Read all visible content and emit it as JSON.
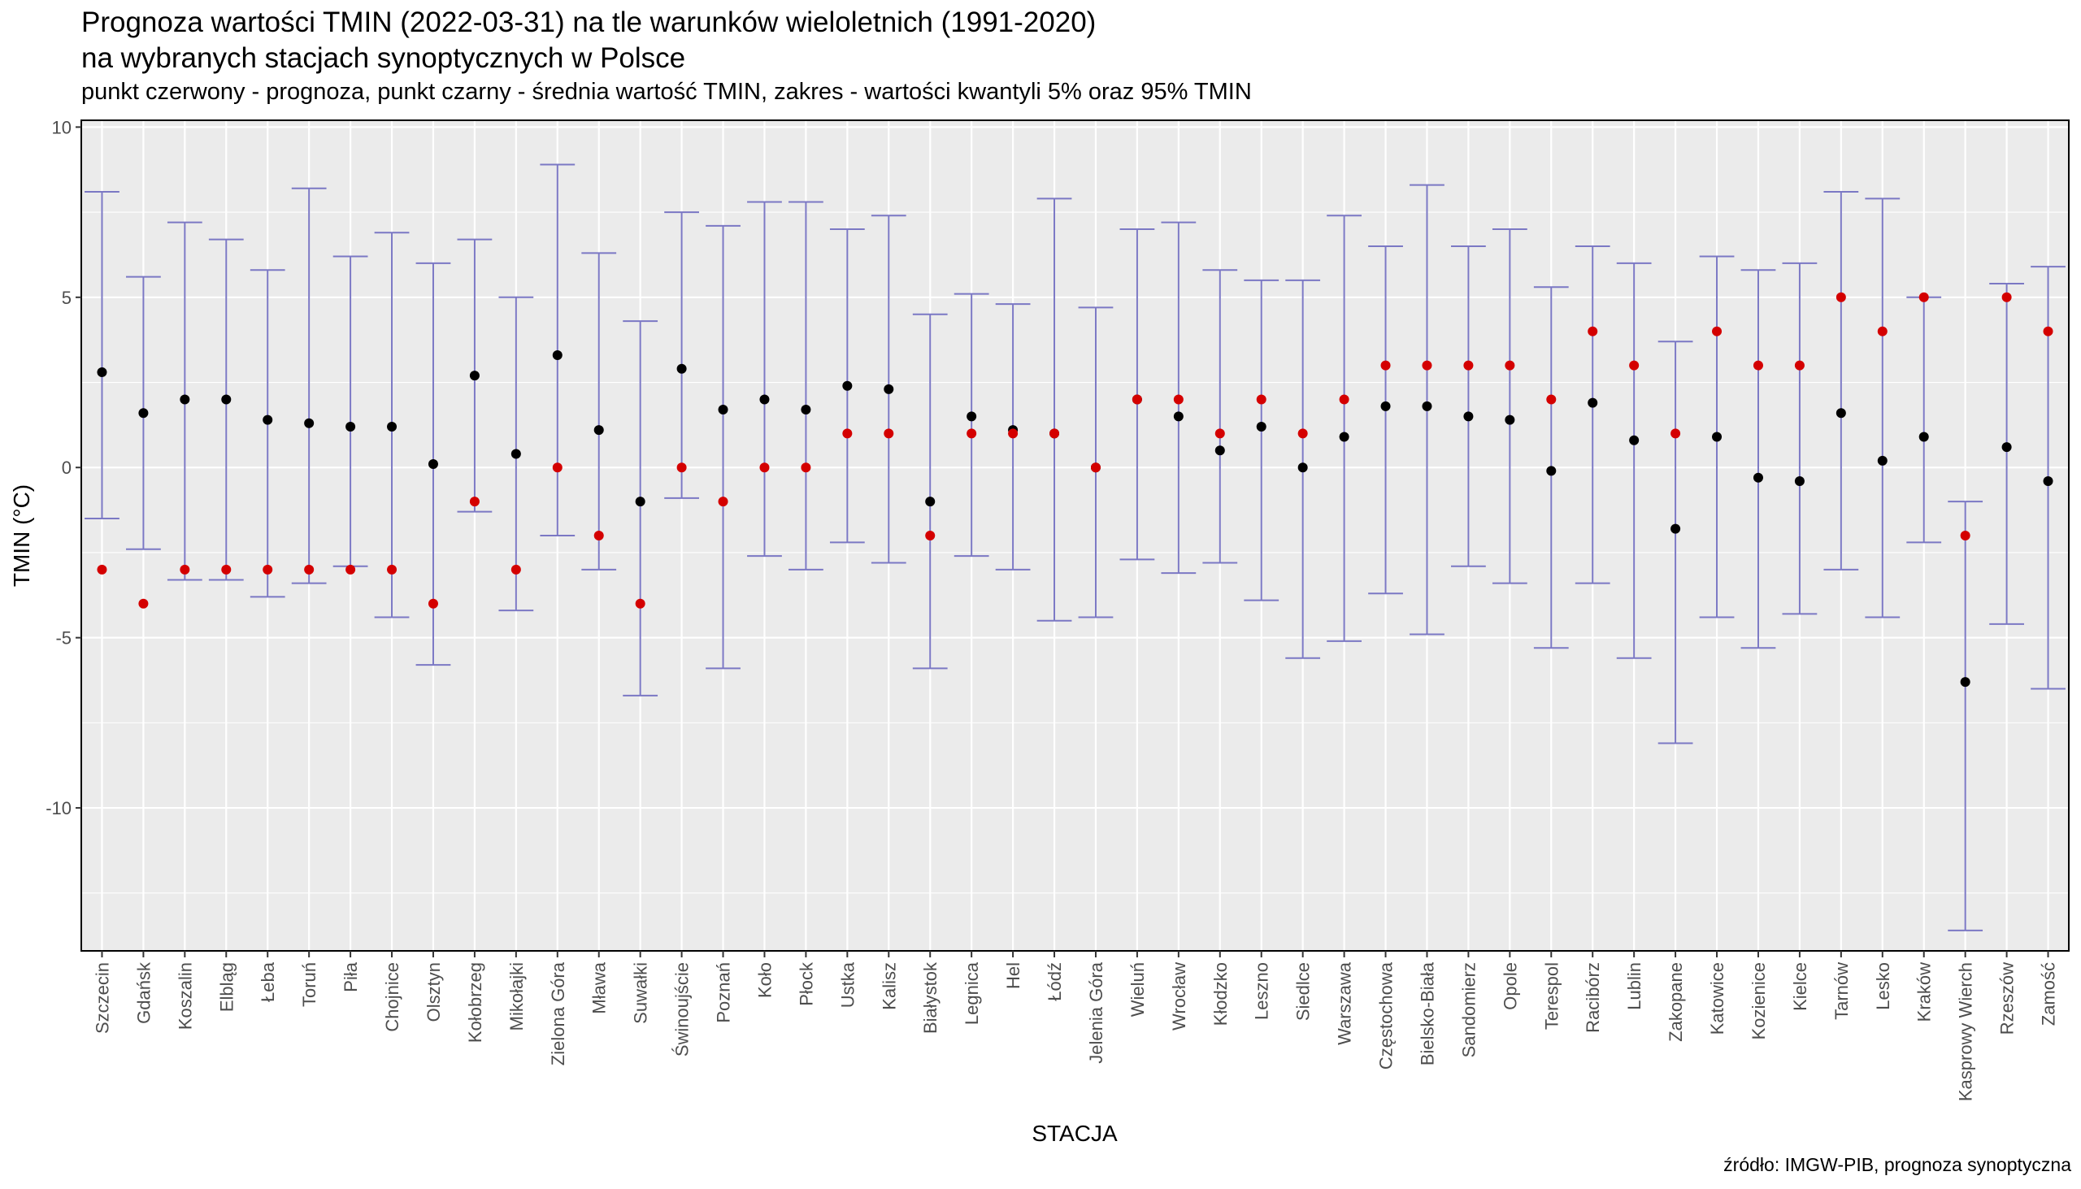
{
  "title_line1": "Prognoza wartości TMIN (2022-03-31) na tle warunków wieloletnich (1991-2020)",
  "title_line2": "na wybranych stacjach synoptycznych w Polsce",
  "subtitle": "punkt czerwony - prognoza, punkt czarny - średnia wartość TMIN, zakres - wartości kwantyli 5% oraz 95% TMIN",
  "caption": "źródło: IMGW-PIB, prognoza synoptyczna",
  "colors": {
    "panel": "#ebebeb",
    "grid": "#ffffff",
    "range": "#7b78c4",
    "forecast": "#d40000",
    "mean": "#000000"
  },
  "chart_data": {
    "type": "scatter",
    "xlabel": "STACJA",
    "ylabel": "TMIN (°C)",
    "ylim": [
      -14.2,
      10.2
    ],
    "yticks": [
      10,
      5,
      0,
      -5,
      -10
    ],
    "ytick_labels": [
      "10",
      "5",
      "0",
      "-5",
      "-10"
    ],
    "grid": true,
    "categories": [
      "Szczecin",
      "Gdańsk",
      "Koszalin",
      "Elbląg",
      "Łeba",
      "Toruń",
      "Piła",
      "Chojnice",
      "Olsztyn",
      "Kołobrzeg",
      "Mikołajki",
      "Zielona Góra",
      "Mława",
      "Suwałki",
      "Świnoujście",
      "Poznań",
      "Koło",
      "Płock",
      "Ustka",
      "Kalisz",
      "Białystok",
      "Legnica",
      "Hel",
      "Łódź",
      "Jelenia Góra",
      "Wieluń",
      "Wrocław",
      "Kłodzko",
      "Leszno",
      "Siedlce",
      "Warszawa",
      "Częstochowa",
      "Bielsko-Biała",
      "Sandomierz",
      "Opole",
      "Terespol",
      "Racibórz",
      "Lublin",
      "Zakopane",
      "Katowice",
      "Kozienice",
      "Kielce",
      "Tarnów",
      "Lesko",
      "Kraków",
      "Kasprowy Wierch",
      "Rzeszów",
      "Zamość"
    ],
    "series": [
      {
        "name": "kwantyl 5%",
        "values": [
          -1.5,
          -2.4,
          -3.3,
          -3.3,
          -3.8,
          -3.4,
          -2.9,
          -4.4,
          -5.8,
          -1.3,
          -4.2,
          -2.0,
          -3.0,
          -6.7,
          -0.9,
          -5.9,
          -2.6,
          -3.0,
          -2.2,
          -2.8,
          -5.9,
          -2.6,
          -3.0,
          -4.5,
          -4.4,
          -2.7,
          -3.1,
          -2.8,
          -3.9,
          -5.6,
          -5.1,
          -3.7,
          -4.9,
          -2.9,
          -3.4,
          -5.3,
          -3.4,
          -5.6,
          -8.1,
          -4.4,
          -5.3,
          -4.3,
          -3.0,
          -4.4,
          -2.2,
          -13.6,
          -4.6,
          -6.5
        ]
      },
      {
        "name": "kwantyl 95%",
        "values": [
          8.1,
          5.6,
          7.2,
          6.7,
          5.8,
          8.2,
          6.2,
          6.9,
          6.0,
          6.7,
          5.0,
          8.9,
          6.3,
          4.3,
          7.5,
          7.1,
          7.8,
          7.8,
          7.0,
          7.4,
          4.5,
          5.1,
          4.8,
          7.9,
          4.7,
          7.0,
          7.2,
          5.8,
          5.5,
          5.5,
          7.4,
          6.5,
          8.3,
          6.5,
          7.0,
          5.3,
          6.5,
          6.0,
          3.7,
          6.2,
          5.8,
          6.0,
          8.1,
          7.9,
          5.0,
          -1.0,
          5.4,
          5.9
        ]
      },
      {
        "name": "średnia wartość TMIN",
        "values": [
          2.8,
          1.6,
          2.0,
          2.0,
          1.4,
          1.3,
          1.2,
          1.2,
          0.1,
          2.7,
          0.4,
          3.3,
          1.1,
          -1.0,
          2.9,
          1.7,
          2.0,
          1.7,
          2.4,
          2.3,
          -1.0,
          1.5,
          1.1,
          1.0,
          0.0,
          2.0,
          1.5,
          0.5,
          1.2,
          0.0,
          0.9,
          1.8,
          1.8,
          1.5,
          1.4,
          -0.1,
          1.9,
          0.8,
          -1.8,
          0.9,
          -0.3,
          -0.4,
          1.6,
          0.2,
          0.9,
          -6.3,
          0.6,
          -0.4
        ]
      },
      {
        "name": "prognoza",
        "values": [
          -3,
          -4,
          -3,
          -3,
          -3,
          -3,
          -3,
          -3,
          -4,
          -1,
          -3,
          0,
          -2,
          -4,
          0,
          -1,
          0,
          0,
          1,
          1,
          -2,
          1,
          1,
          1,
          0,
          2,
          2,
          1,
          2,
          1,
          2,
          3,
          3,
          3,
          3,
          2,
          4,
          3,
          1,
          4,
          3,
          3,
          5,
          4,
          5,
          -2,
          5,
          4
        ]
      }
    ]
  }
}
